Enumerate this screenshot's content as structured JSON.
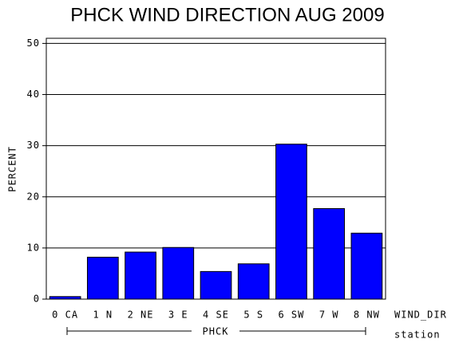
{
  "chart_data": {
    "type": "bar",
    "title": "PHCK WIND DIRECTION AUG 2009",
    "y_label": "PERCENT",
    "x_label": "WIND_DIR",
    "group_label": "PHCK",
    "group_axis_label": "station",
    "categories": [
      "0 CA",
      "1 N",
      "2 NE",
      "3 E",
      "4 SE",
      "5 S",
      "6 SW",
      "7 W",
      "8 NW"
    ],
    "values": [
      0.5,
      8.2,
      9.2,
      10.1,
      5.4,
      6.9,
      30.3,
      17.7,
      12.9
    ],
    "color": "#0000ff",
    "ylim": [
      0,
      51
    ],
    "yticks": [
      0,
      10,
      20,
      30,
      40,
      50
    ],
    "grid": true
  }
}
